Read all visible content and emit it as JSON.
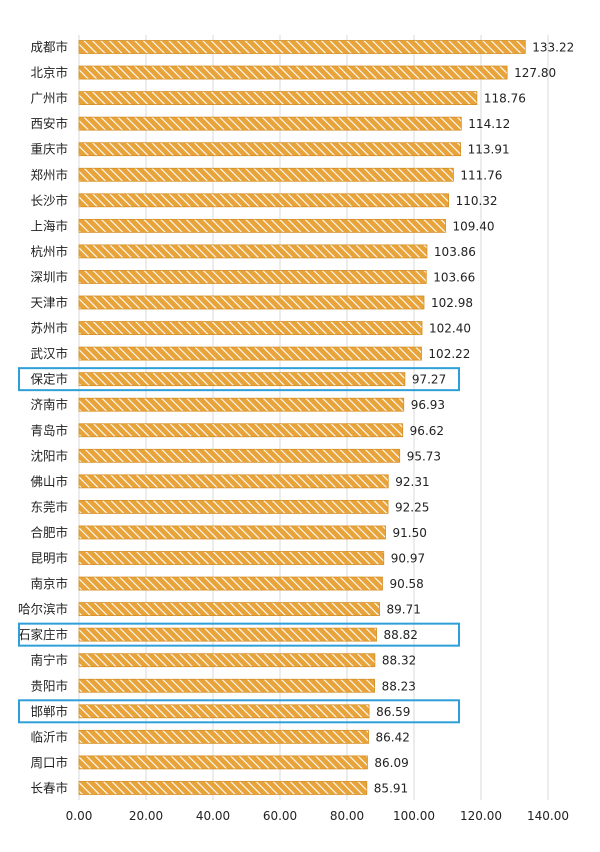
{
  "chart_data": {
    "type": "bar",
    "orientation": "horizontal",
    "categories": [
      "成都市",
      "北京市",
      "广州市",
      "西安市",
      "重庆市",
      "郑州市",
      "长沙市",
      "上海市",
      "杭州市",
      "深圳市",
      "天津市",
      "苏州市",
      "武汉市",
      "保定市",
      "济南市",
      "青岛市",
      "沈阳市",
      "佛山市",
      "东莞市",
      "合肥市",
      "昆明市",
      "南京市",
      "哈尔滨市",
      "石家庄市",
      "南宁市",
      "贵阳市",
      "邯郸市",
      "临沂市",
      "周口市",
      "长春市"
    ],
    "values": [
      133.22,
      127.8,
      118.76,
      114.12,
      113.91,
      111.76,
      110.32,
      109.4,
      103.86,
      103.66,
      102.98,
      102.4,
      102.22,
      97.27,
      96.93,
      96.62,
      95.73,
      92.31,
      92.25,
      91.5,
      90.97,
      90.58,
      89.71,
      88.82,
      88.32,
      88.23,
      86.59,
      86.42,
      86.09,
      85.91
    ],
    "value_labels": [
      "133.22",
      "127.80",
      "118.76",
      "114.12",
      "113.91",
      "111.76",
      "110.32",
      "109.40",
      "103.86",
      "103.66",
      "102.98",
      "102.40",
      "102.22",
      "97.27",
      "96.93",
      "96.62",
      "95.73",
      "92.31",
      "92.25",
      "91.50",
      "90.97",
      "90.58",
      "89.71",
      "88.82",
      "88.32",
      "88.23",
      "86.59",
      "86.42",
      "86.09",
      "85.91"
    ],
    "xlim": [
      0,
      140
    ],
    "x_ticks": [
      "0.00",
      "20.00",
      "40.00",
      "60.00",
      "80.00",
      "100.00",
      "120.00",
      "140.00"
    ],
    "highlighted": [
      "保定市",
      "石家庄市",
      "邯郸市"
    ],
    "grid": "vertical",
    "colors": {
      "bar": "#E8A43A",
      "bar_stripe": "#FFFFFF",
      "highlight_box": "#2E9FD8",
      "grid": "#D9D9D9",
      "text": "#222222"
    }
  }
}
